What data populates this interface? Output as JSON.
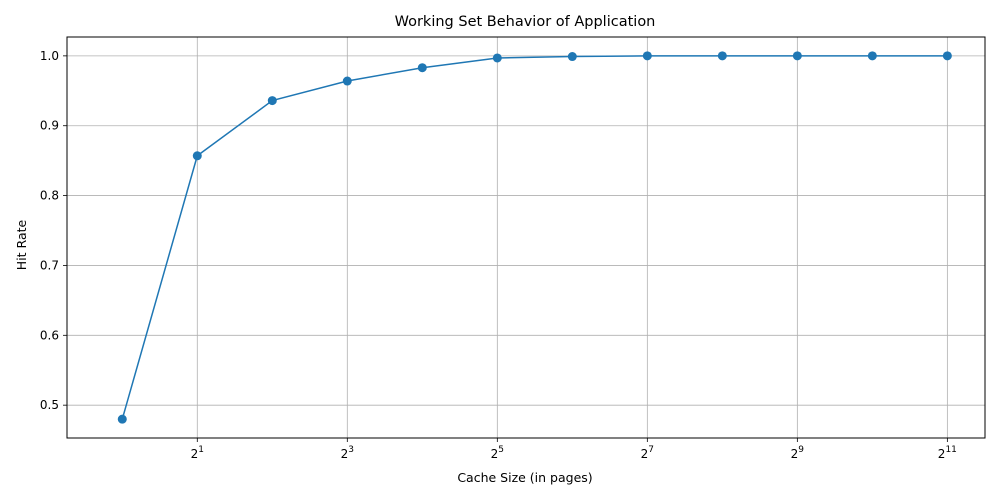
{
  "chart_data": {
    "type": "line",
    "title": "Working Set Behavior of Application",
    "xlabel": "Cache Size (in pages)",
    "ylabel": "Hit Rate",
    "x_scale": "log2",
    "x": [
      1,
      2,
      4,
      8,
      16,
      32,
      64,
      128,
      256,
      512,
      1024,
      2048
    ],
    "series": [
      {
        "values": [
          0.48,
          0.857,
          0.936,
          0.964,
          0.983,
          0.997,
          0.999,
          1.0,
          1.0,
          1.0,
          1.0,
          1.0
        ],
        "color": "#1f77b4",
        "marker": "circle"
      }
    ],
    "xticks": [
      {
        "value": 2,
        "base": "2",
        "exp": "1"
      },
      {
        "value": 8,
        "base": "2",
        "exp": "3"
      },
      {
        "value": 32,
        "base": "2",
        "exp": "5"
      },
      {
        "value": 128,
        "base": "2",
        "exp": "7"
      },
      {
        "value": 512,
        "base": "2",
        "exp": "9"
      },
      {
        "value": 2048,
        "base": "2",
        "exp": "11"
      }
    ],
    "yticks": [
      {
        "value": 0.5,
        "label": "0.5"
      },
      {
        "value": 0.6,
        "label": "0.6"
      },
      {
        "value": 0.7,
        "label": "0.7"
      },
      {
        "value": 0.8,
        "label": "0.8"
      },
      {
        "value": 0.9,
        "label": "0.9"
      },
      {
        "value": 1.0,
        "label": "1.0"
      }
    ],
    "xlim": [
      0.6,
      2900
    ],
    "ylim": [
      0.453,
      1.027
    ],
    "grid": true
  }
}
